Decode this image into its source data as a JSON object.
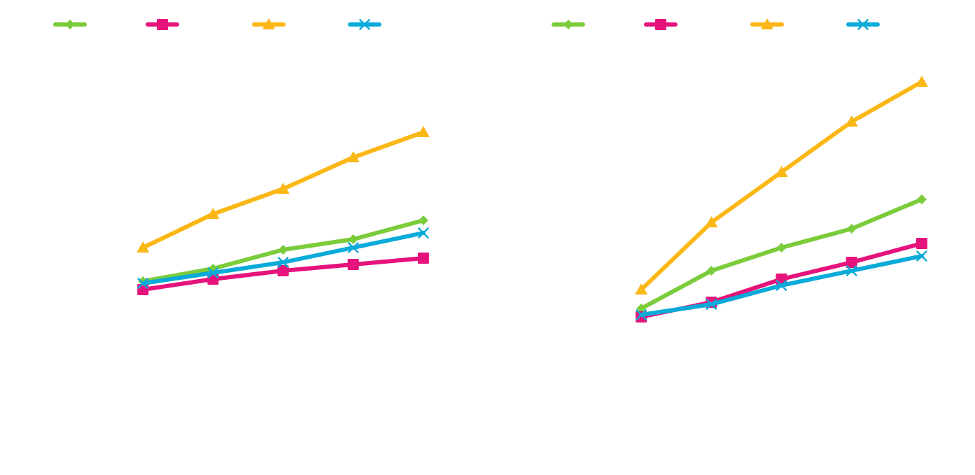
{
  "colors": {
    "green": "#7ACC3A",
    "magenta": "#E5137B",
    "gold": "#FBB716",
    "cyan": "#0AAAD9",
    "background": "#FFFFFF"
  },
  "legend": {
    "position": "top",
    "items": [
      {
        "marker": "diamond",
        "color": "#7ACC3A"
      },
      {
        "marker": "square",
        "color": "#E5137B"
      },
      {
        "marker": "triangle",
        "color": "#FBB716"
      },
      {
        "marker": "x",
        "color": "#0AAAD9"
      }
    ]
  },
  "chart_data": [
    {
      "type": "line",
      "title": "",
      "xlabel": "",
      "ylabel": "",
      "x": [
        1,
        2,
        3,
        4,
        5
      ],
      "xlim": [
        0,
        5.5
      ],
      "ylim": [
        0,
        100
      ],
      "grid": false,
      "series": [
        {
          "marker": "diamond",
          "color": "#7ACC3A",
          "values": [
            43.0,
            46.0,
            50.5,
            53.0,
            57.5
          ]
        },
        {
          "marker": "square",
          "color": "#E5137B",
          "values": [
            41.0,
            43.5,
            45.5,
            47.0,
            48.5
          ]
        },
        {
          "marker": "triangle",
          "color": "#FBB716",
          "values": [
            51.0,
            59.0,
            65.0,
            72.5,
            78.5
          ]
        },
        {
          "marker": "x",
          "color": "#0AAAD9",
          "values": [
            42.5,
            45.0,
            47.5,
            51.0,
            54.5
          ]
        }
      ]
    },
    {
      "type": "line",
      "title": "",
      "xlabel": "",
      "ylabel": "",
      "x": [
        1,
        2,
        3,
        4,
        5
      ],
      "xlim": [
        0,
        5.5
      ],
      "ylim": [
        0,
        100
      ],
      "grid": false,
      "series": [
        {
          "marker": "diamond",
          "color": "#7ACC3A",
          "values": [
            36.5,
            45.5,
            51.0,
            55.5,
            62.5
          ]
        },
        {
          "marker": "square",
          "color": "#E5137B",
          "values": [
            34.5,
            38.0,
            43.5,
            47.5,
            52.0
          ]
        },
        {
          "marker": "triangle",
          "color": "#FBB716",
          "values": [
            41.0,
            57.0,
            69.0,
            81.0,
            90.5
          ]
        },
        {
          "marker": "x",
          "color": "#0AAAD9",
          "values": [
            35.0,
            37.5,
            42.0,
            45.5,
            49.0
          ]
        }
      ]
    }
  ]
}
